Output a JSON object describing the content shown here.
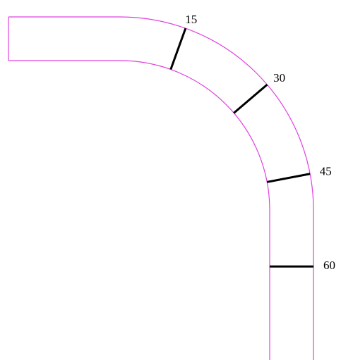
{
  "markers": [
    15,
    30,
    45,
    60
  ]
}
